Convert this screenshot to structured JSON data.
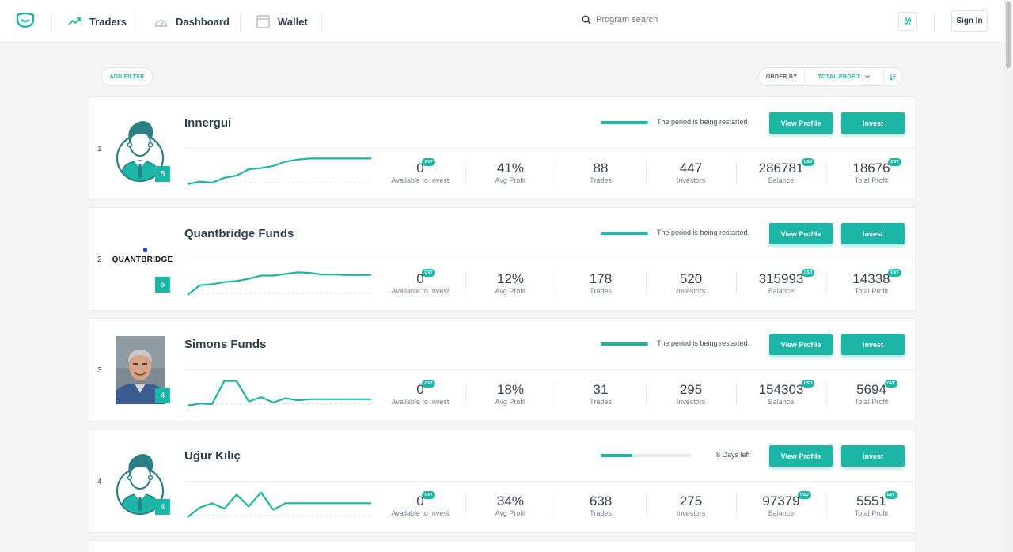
{
  "nav": {
    "items": [
      {
        "label": "Traders",
        "icon": "trending-up-icon"
      },
      {
        "label": "Dashboard",
        "icon": "gauge-icon"
      },
      {
        "label": "Wallet",
        "icon": "wallet-icon"
      }
    ],
    "search_placeholder": "Program search",
    "sign_in": "Sign In"
  },
  "toolbar": {
    "add_filter": "ADD FILTER",
    "order_by_label": "ORDER BY",
    "order_by_value": "TOTAL PROFIT"
  },
  "colors": {
    "accent": "#1cb5a6",
    "text": "#2c3e50"
  },
  "buttons": {
    "view_profile": "View Profile",
    "invest": "Invest"
  },
  "stat_labels": {
    "available": "Available to Invest",
    "avg_profit": "Avg Profit",
    "trades": "Trades",
    "investors": "Investors",
    "balance": "Balance",
    "total_profit": "Total Profit"
  },
  "traders": [
    {
      "rank": "1",
      "name": "Innergui",
      "level": "5",
      "avatar": "default-avatar",
      "period_text": "The period is being restarted.",
      "period_progress": 1.0,
      "available": "0",
      "available_currency": "GVT",
      "avg_profit": "41%",
      "trades": "88",
      "investors": "447",
      "balance": "286781",
      "balance_currency": "USD",
      "total_profit": "18676",
      "total_profit_currency": "GVT",
      "chart": [
        0,
        0.5,
        0.3,
        1.2,
        1.6,
        2.8,
        3.0,
        3.4,
        4.2,
        4.6,
        4.8,
        4.8,
        4.8,
        4.8,
        4.8,
        4.8
      ]
    },
    {
      "rank": "2",
      "name": "Quantbridge Funds",
      "level": "5",
      "avatar": "quantbridge-logo",
      "logo_text": "QUANTBRIDGE",
      "period_text": "The period is being restarted.",
      "period_progress": 1.0,
      "available": "0",
      "available_currency": "GVT",
      "avg_profit": "12%",
      "trades": "178",
      "investors": "520",
      "balance": "315993",
      "balance_currency": "USD",
      "total_profit": "14338",
      "total_profit_currency": "GVT",
      "chart": [
        0,
        1.8,
        2.0,
        2.4,
        2.6,
        3.0,
        3.6,
        3.6,
        3.9,
        4.2,
        4.1,
        3.8,
        3.8,
        3.7,
        3.7,
        3.7
      ]
    },
    {
      "rank": "3",
      "name": "Simons Funds",
      "level": "4",
      "avatar": "photo-avatar",
      "period_text": "The period is being restarted.",
      "period_progress": 1.0,
      "available": "0",
      "available_currency": "GVT",
      "avg_profit": "18%",
      "trades": "31",
      "investors": "295",
      "balance": "154303",
      "balance_currency": "USD",
      "total_profit": "5694",
      "total_profit_currency": "GVT",
      "chart": [
        0,
        0.4,
        0.3,
        4.6,
        4.6,
        0.8,
        1.6,
        0.6,
        1.4,
        1.0,
        1.2,
        1.2,
        1.2,
        1.2,
        1.2,
        1.2
      ]
    },
    {
      "rank": "4",
      "name": "Uğur Kılıç",
      "level": "4",
      "avatar": "default-avatar",
      "period_text": "8 Days left",
      "period_progress": 0.35,
      "available": "0",
      "available_currency": "GVT",
      "avg_profit": "34%",
      "trades": "638",
      "investors": "275",
      "balance": "97379",
      "balance_currency": "USD",
      "total_profit": "5551",
      "total_profit_currency": "GVT",
      "chart": [
        0,
        1.8,
        2.6,
        1.6,
        4.2,
        2.0,
        4.6,
        1.4,
        2.6,
        2.6,
        2.6,
        2.6,
        2.6,
        2.6,
        2.6,
        2.6
      ]
    }
  ]
}
